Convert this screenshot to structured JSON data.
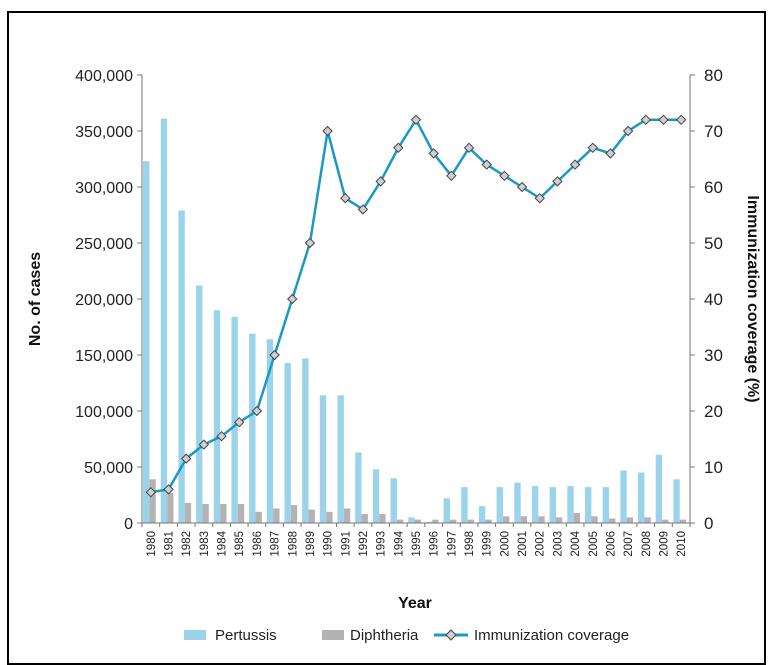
{
  "chart_data": {
    "type": "bar",
    "title": "",
    "categories": [
      "1980",
      "1981",
      "1982",
      "1983",
      "1984",
      "1985",
      "1986",
      "1987",
      "1988",
      "1989",
      "1990",
      "1991",
      "1992",
      "1993",
      "1994",
      "1995",
      "1996",
      "1997",
      "1998",
      "1999",
      "2000",
      "2001",
      "2002",
      "2003",
      "2004",
      "2005",
      "2006",
      "2007",
      "2008",
      "2009",
      "2010"
    ],
    "series": [
      {
        "name": "Pertussis",
        "kind": "bar",
        "axis": "left",
        "color": "#9bd3ea",
        "values": [
          323000,
          361000,
          279000,
          212000,
          190000,
          184000,
          169000,
          164000,
          143000,
          147000,
          114000,
          114000,
          63000,
          48000,
          40000,
          5000,
          1000,
          22000,
          32000,
          15000,
          32000,
          36000,
          33000,
          32000,
          33000,
          32000,
          32000,
          47000,
          45000,
          61000,
          39000
        ]
      },
      {
        "name": "Diphtheria",
        "kind": "bar",
        "axis": "left",
        "color": "#b3b3b3",
        "values": [
          39000,
          27000,
          18000,
          17000,
          17000,
          17000,
          10000,
          13000,
          16000,
          12000,
          10000,
          13000,
          8000,
          8000,
          3000,
          3000,
          3000,
          3000,
          3000,
          3000,
          6000,
          6000,
          6000,
          5000,
          9000,
          6000,
          4000,
          5000,
          5000,
          3000,
          3000
        ]
      },
      {
        "name": "Immunization coverage",
        "kind": "line",
        "axis": "right",
        "color": "#1b98c6",
        "values": [
          5.5,
          6,
          11.5,
          14,
          15.5,
          18,
          20,
          30,
          40,
          50,
          70,
          58,
          56,
          61,
          67,
          72,
          66,
          62,
          67,
          64,
          62,
          60,
          58,
          61,
          64,
          67,
          66,
          70,
          72,
          72,
          72
        ]
      }
    ],
    "xlabel": "Year",
    "ylabel": "No. of cases",
    "y2label": "Immunization coverage (%)",
    "ylim": [
      0,
      400000
    ],
    "y2lim": [
      0,
      80
    ],
    "yticks": [
      "0",
      "50,000",
      "100,000",
      "150,000",
      "200,000",
      "250,000",
      "300,000",
      "350,000",
      "400,000"
    ],
    "y2ticks": [
      "0",
      "10",
      "20",
      "30",
      "40",
      "50",
      "60",
      "70",
      "80"
    ],
    "legend": {
      "position": "bottom",
      "items": [
        "Pertussis",
        "Diphtheria",
        "Immunization coverage"
      ]
    },
    "grid": false
  }
}
